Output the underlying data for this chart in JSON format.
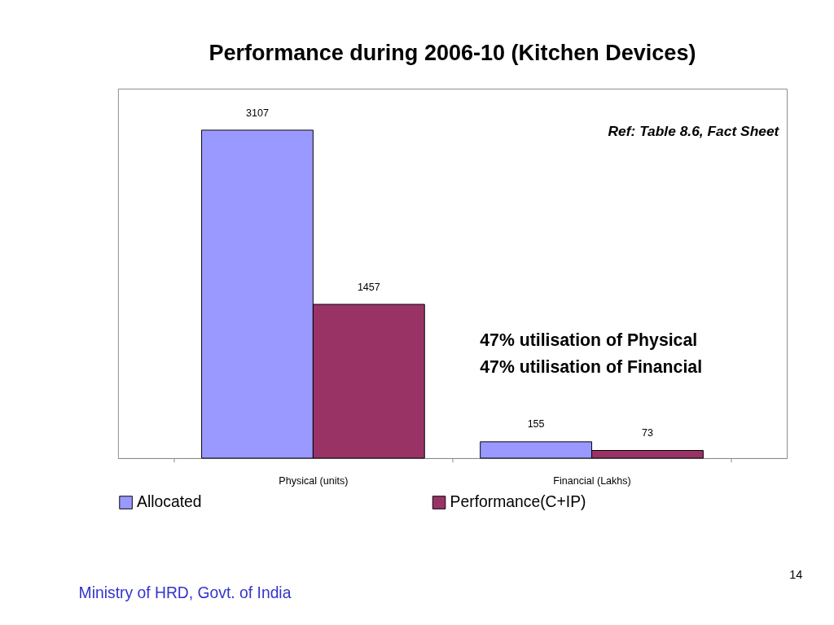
{
  "chart_data": {
    "type": "bar",
    "title": "Performance during 2006-10 (Kitchen Devices)",
    "categories": [
      "Physical (units)",
      "Financial (Lakhs)"
    ],
    "series": [
      {
        "name": "Allocated",
        "color": "#9999ff",
        "values": [
          3107,
          155
        ]
      },
      {
        "name": "Performance(C+IP)",
        "color": "#993366",
        "values": [
          1457,
          73
        ]
      }
    ],
    "data_labels": true,
    "legend": "bottom",
    "tick_labels": "x",
    "annotations": [
      "Ref: Table 8.6, Fact Sheet",
      "47% utilisation of Physical",
      "47% utilisation of Financial",
      "Ministry of HRD, Govt. of India",
      "14"
    ]
  }
}
